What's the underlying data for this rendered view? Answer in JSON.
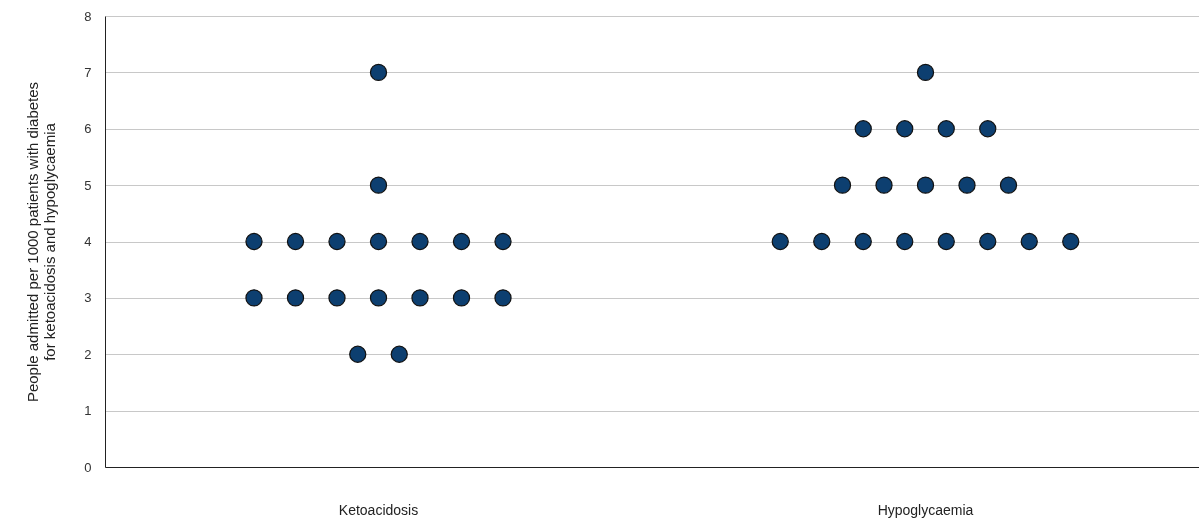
{
  "chart_data": {
    "type": "scatter",
    "ylabel": "People admitted per 1000 patients with diabetes\nfor ketoacidosis and hypoglycaemia",
    "categories": [
      "Ketoacidosis",
      "Hypoglycaemia"
    ],
    "series": [
      {
        "color": "#0d3f70",
        "x": [
          "Ketoacidosis",
          "Ketoacidosis",
          "Ketoacidosis",
          "Ketoacidosis",
          "Ketoacidosis",
          "Ketoacidosis",
          "Ketoacidosis",
          "Ketoacidosis",
          "Ketoacidosis",
          "Ketoacidosis",
          "Ketoacidosis",
          "Ketoacidosis",
          "Ketoacidosis",
          "Ketoacidosis",
          "Ketoacidosis",
          "Ketoacidosis",
          "Ketoacidosis",
          "Ketoacidosis",
          "Hypoglycaemia",
          "Hypoglycaemia",
          "Hypoglycaemia",
          "Hypoglycaemia",
          "Hypoglycaemia",
          "Hypoglycaemia",
          "Hypoglycaemia",
          "Hypoglycaemia",
          "Hypoglycaemia",
          "Hypoglycaemia",
          "Hypoglycaemia",
          "Hypoglycaemia",
          "Hypoglycaemia",
          "Hypoglycaemia",
          "Hypoglycaemia",
          "Hypoglycaemia",
          "Hypoglycaemia",
          "Hypoglycaemia"
        ],
        "values": [
          7,
          5,
          4,
          4,
          4,
          4,
          4,
          4,
          4,
          3,
          3,
          3,
          3,
          3,
          3,
          3,
          2,
          2,
          7,
          6,
          6,
          6,
          6,
          5,
          5,
          5,
          5,
          5,
          4,
          4,
          4,
          4,
          4,
          4,
          4,
          4
        ]
      }
    ],
    "ylim": [
      0,
      8
    ],
    "yticks": [
      0,
      1,
      2,
      3,
      4,
      5,
      6,
      7,
      8
    ],
    "grid": "y",
    "marker": "circle"
  }
}
